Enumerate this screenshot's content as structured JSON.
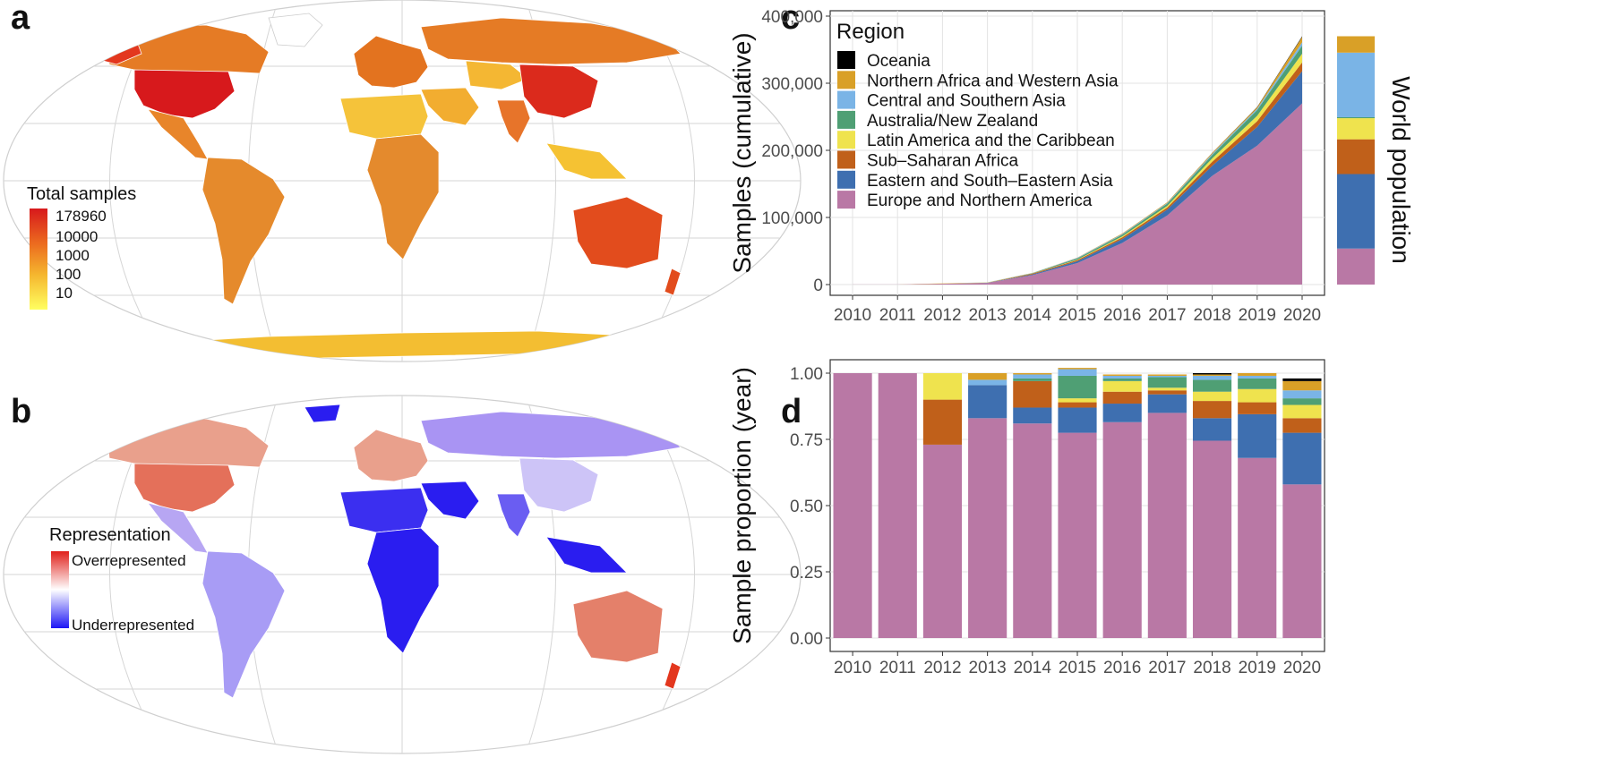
{
  "panels": {
    "a": "a",
    "b": "b",
    "c": "c",
    "d": "d"
  },
  "colors": {
    "Oceania": "#000000",
    "Northern Africa and Western Asia": "#d9a027",
    "Central and Southern Asia": "#7ab4e6",
    "Australia/New Zealand": "#4f9f74",
    "Latin America and the Caribbean": "#efe34e",
    "Sub-Saharan Africa": "#c0601a",
    "Eastern and South-Eastern Asia": "#3e6fb0",
    "Europe and Northern America": "#b978a5"
  },
  "map_a": {
    "legend_title": "Total samples",
    "legend_labels": [
      "178960",
      "10000",
      "1000",
      "100",
      "10"
    ]
  },
  "map_b": {
    "legend_title": "Representation",
    "legend_high": "Overrepresented",
    "legend_low": "Underrepresented"
  },
  "chart_data": [
    {
      "type": "area",
      "panel": "c",
      "title": "",
      "xlabel": "",
      "ylabel": "Samples (cumulative)",
      "ylim": [
        0,
        400000
      ],
      "yticks": [
        0,
        100000,
        200000,
        300000,
        400000
      ],
      "ytick_labels": [
        "0",
        "100,000",
        "200,000",
        "300,000",
        "400,000"
      ],
      "x": [
        "2010",
        "2011",
        "2012",
        "2013",
        "2014",
        "2015",
        "2016",
        "2017",
        "2018",
        "2019",
        "2020"
      ],
      "legend_title": "Region",
      "legend_placement": "top-left",
      "legend_order": [
        "Oceania",
        "Northern Africa and Western Asia",
        "Central and Southern Asia",
        "Australia/New Zealand",
        "Latin America and the Caribbean",
        "Sub–Saharan Africa",
        "Eastern and South–Eastern Asia",
        "Europe and Northern America"
      ],
      "series": [
        {
          "name": "Europe and Northern America",
          "values": [
            100,
            200,
            1200,
            2300,
            14000,
            32000,
            62000,
            103000,
            162000,
            207000,
            270000
          ]
        },
        {
          "name": "Eastern and South–Eastern Asia",
          "values": [
            0,
            0,
            0,
            300,
            1100,
            2800,
            5800,
            8800,
            15000,
            28000,
            48000
          ]
        },
        {
          "name": "Sub–Saharan Africa",
          "values": [
            0,
            0,
            300,
            300,
            1200,
            1700,
            2600,
            3100,
            6000,
            8500,
            13000
          ]
        },
        {
          "name": "Latin America and the Caribbean",
          "values": [
            0,
            0,
            300,
            300,
            200,
            700,
            1500,
            2200,
            5000,
            8000,
            13000
          ]
        },
        {
          "name": "Australia/New Zealand",
          "values": [
            0,
            0,
            0,
            0,
            500,
            1800,
            2500,
            3500,
            5000,
            8500,
            12000
          ]
        },
        {
          "name": "Central and Southern Asia",
          "values": [
            0,
            0,
            0,
            100,
            200,
            800,
            1000,
            1100,
            1600,
            2000,
            5000
          ]
        },
        {
          "name": "Northern Africa and Western Asia",
          "values": [
            0,
            0,
            0,
            100,
            200,
            400,
            700,
            1000,
            1500,
            2200,
            8000
          ]
        },
        {
          "name": "Oceania",
          "values": [
            0,
            0,
            0,
            0,
            0,
            0,
            0,
            0,
            300,
            400,
            1000
          ]
        }
      ],
      "world_population": {
        "label": "World population",
        "shares": [
          {
            "name": "Europe and Northern America",
            "value": 0.145
          },
          {
            "name": "Eastern and South–Eastern Asia",
            "value": 0.3
          },
          {
            "name": "Sub–Saharan Africa",
            "value": 0.14
          },
          {
            "name": "Latin America and the Caribbean",
            "value": 0.085
          },
          {
            "name": "Australia/New Zealand",
            "value": 0.004
          },
          {
            "name": "Central and Southern Asia",
            "value": 0.26
          },
          {
            "name": "Northern Africa and Western Asia",
            "value": 0.066
          }
        ]
      }
    },
    {
      "type": "bar",
      "panel": "d",
      "stacked": true,
      "title": "",
      "xlabel": "",
      "ylabel": "Sample proportion (year)",
      "ylim": [
        0,
        1.05
      ],
      "yticks": [
        0,
        0.25,
        0.5,
        0.75,
        1.0
      ],
      "ytick_labels": [
        "0.00",
        "0.25",
        "0.50",
        "0.75",
        "1.00"
      ],
      "categories": [
        "2010",
        "2011",
        "2012",
        "2013",
        "2014",
        "2015",
        "2016",
        "2017",
        "2018",
        "2019",
        "2020"
      ],
      "series": [
        {
          "name": "Europe and Northern America",
          "values": [
            1.0,
            1.0,
            0.73,
            0.83,
            0.81,
            0.775,
            0.815,
            0.85,
            0.745,
            0.68,
            0.58
          ]
        },
        {
          "name": "Eastern and South–Eastern Asia",
          "values": [
            0,
            0,
            0,
            0.125,
            0.06,
            0.095,
            0.07,
            0.07,
            0.085,
            0.165,
            0.195
          ]
        },
        {
          "name": "Sub–Saharan Africa",
          "values": [
            0,
            0,
            0.17,
            0,
            0.1,
            0.02,
            0.045,
            0.015,
            0.065,
            0.045,
            0.055
          ]
        },
        {
          "name": "Latin America and the Caribbean",
          "values": [
            0,
            0,
            0.1,
            0,
            0,
            0.015,
            0.04,
            0.01,
            0.035,
            0.05,
            0.05
          ]
        },
        {
          "name": "Australia/New Zealand",
          "values": [
            0,
            0,
            0,
            0,
            0.01,
            0.085,
            0.01,
            0.04,
            0.045,
            0.04,
            0.025
          ]
        },
        {
          "name": "Central and Southern Asia",
          "values": [
            0,
            0,
            0,
            0.02,
            0.015,
            0.025,
            0.01,
            0.005,
            0.015,
            0.01,
            0.03
          ]
        },
        {
          "name": "Northern Africa and Western Asia",
          "values": [
            0,
            0,
            0,
            0.025,
            0.005,
            0.005,
            0.005,
            0.005,
            0.005,
            0.01,
            0.035
          ]
        },
        {
          "name": "Oceania",
          "values": [
            0,
            0,
            0,
            0,
            0,
            0,
            0,
            0,
            0.005,
            0,
            0.01
          ]
        }
      ]
    }
  ]
}
